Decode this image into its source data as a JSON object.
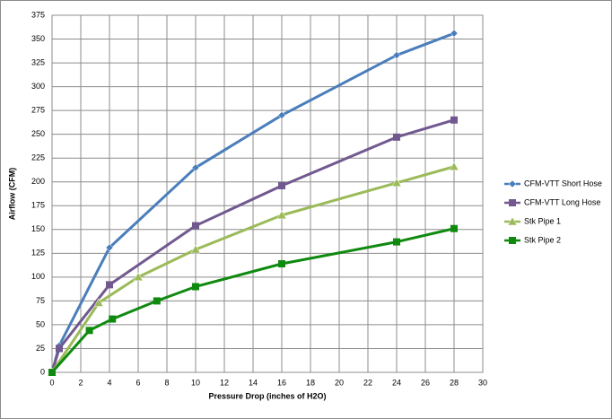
{
  "chart_data": {
    "type": "line",
    "xlabel": "Pressure Drop (inches of H2O)",
    "ylabel": "Airflow (CFM)",
    "xlim": [
      0,
      30
    ],
    "xticks": [
      0,
      2,
      4,
      6,
      8,
      10,
      12,
      14,
      16,
      18,
      20,
      22,
      24,
      26,
      28,
      30
    ],
    "ylim": [
      0,
      375
    ],
    "yticks": [
      0,
      25,
      50,
      75,
      100,
      125,
      150,
      175,
      200,
      225,
      250,
      275,
      300,
      325,
      350,
      375
    ],
    "grid": true,
    "legend": "right",
    "series": [
      {
        "name": "CFM-VTT Short Hose",
        "color": "#4a7ebb",
        "marker": "diamond",
        "x": [
          0,
          0.5,
          4,
          10,
          16,
          24,
          28
        ],
        "values": [
          0,
          28,
          131,
          215,
          270,
          333,
          356
        ]
      },
      {
        "name": "CFM-VTT Long Hose",
        "color": "#71588f",
        "marker": "square",
        "x": [
          0,
          0.5,
          4,
          10,
          16,
          24,
          28
        ],
        "values": [
          0,
          25,
          92,
          154,
          196,
          247,
          265
        ]
      },
      {
        "name": "Stk Pipe 1",
        "color": "#9bbb59",
        "marker": "triangle",
        "x": [
          0,
          3.25,
          6,
          10,
          16,
          24,
          28
        ],
        "values": [
          0,
          73,
          100,
          129,
          165,
          199,
          216
        ]
      },
      {
        "name": "Stk Pipe 2",
        "color": "#0f8a0f",
        "marker": "square",
        "x": [
          0,
          2.6,
          4.2,
          7.3,
          10,
          16,
          24,
          28
        ],
        "values": [
          0,
          44,
          56,
          75,
          90,
          114,
          137,
          151
        ]
      }
    ]
  }
}
